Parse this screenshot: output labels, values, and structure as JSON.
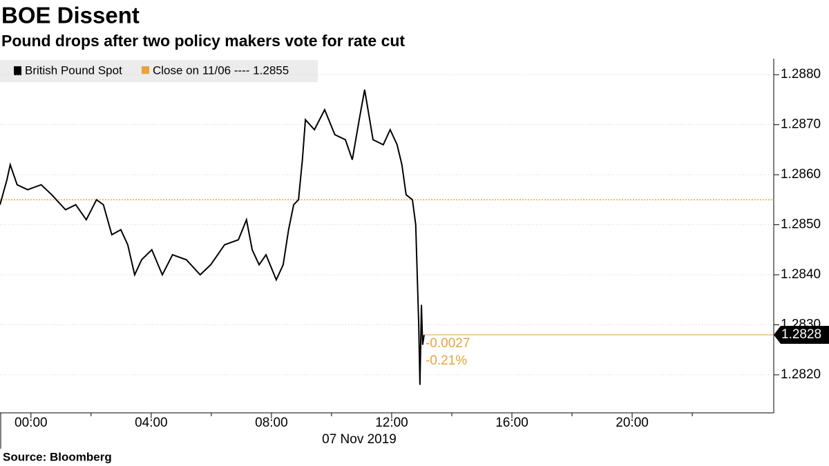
{
  "chart_data": {
    "type": "line",
    "title": "BOE Dissent",
    "subtitle": "Pound drops after two policy makers vote for rate cut",
    "x_label": "07 Nov 2019",
    "source": "Source: Bloomberg",
    "x": [
      -1.03,
      -0.8,
      -0.69,
      -0.46,
      -0.11,
      0.34,
      0.69,
      1.15,
      1.49,
      1.84,
      2.18,
      2.41,
      2.69,
      2.99,
      3.22,
      3.45,
      3.68,
      4.02,
      4.37,
      4.71,
      5.17,
      5.63,
      5.98,
      6.44,
      6.9,
      7.17,
      7.36,
      7.59,
      7.82,
      8.16,
      8.39,
      8.57,
      8.74,
      8.9,
      9.03,
      9.13,
      9.43,
      9.77,
      10.11,
      10.46,
      10.69,
      10.92,
      11.1,
      11.38,
      11.72,
      11.95,
      12.18,
      12.34,
      12.48,
      12.69,
      12.8,
      12.9,
      12.94,
      12.99,
      13.03,
      13.08
    ],
    "series": [
      {
        "name": "British Pound Spot",
        "color": "#000000",
        "values": [
          1.2854,
          1.2859,
          1.2862,
          1.2858,
          1.2857,
          1.2858,
          1.2856,
          1.2853,
          1.2854,
          1.2851,
          1.2855,
          1.2854,
          1.2848,
          1.2849,
          1.2846,
          1.284,
          1.2843,
          1.2845,
          1.284,
          1.2844,
          1.2843,
          1.284,
          1.2842,
          1.2846,
          1.2847,
          1.2851,
          1.2845,
          1.2842,
          1.2844,
          1.2839,
          1.2842,
          1.2849,
          1.2854,
          1.2855,
          1.2863,
          1.2871,
          1.2869,
          1.2873,
          1.2868,
          1.2867,
          1.2863,
          1.2871,
          1.2877,
          1.2867,
          1.2866,
          1.2869,
          1.2866,
          1.2862,
          1.2856,
          1.2855,
          1.285,
          1.283,
          1.2818,
          1.2834,
          1.2826,
          1.2828
        ]
      }
    ],
    "reference_line": {
      "name": "Close on 11/06 ---- 1.2855",
      "value": 1.2855,
      "color": "#e8a33d"
    },
    "annotations": [
      "-0.0027",
      "-0.21%"
    ],
    "xlim": [
      -1.03,
      24.71
    ],
    "ylim": [
      1.28124,
      1.28832
    ],
    "xticks": [
      {
        "value": 0,
        "label": "00:00"
      },
      {
        "value": 4,
        "label": "04:00"
      },
      {
        "value": 8,
        "label": "08:00"
      },
      {
        "value": 12,
        "label": "12:00"
      },
      {
        "value": 16,
        "label": "16:00"
      },
      {
        "value": 20,
        "label": "20:00"
      }
    ],
    "minor_xticks": [
      2,
      6,
      10,
      14,
      18,
      22
    ],
    "yticks": [
      {
        "value": 1.282,
        "label": "1.2820"
      },
      {
        "value": 1.283,
        "label": "1.2830"
      },
      {
        "value": 1.284,
        "label": "1.2840"
      },
      {
        "value": 1.285,
        "label": "1.2850"
      },
      {
        "value": 1.286,
        "label": "1.2860"
      },
      {
        "value": 1.287,
        "label": "1.2870"
      },
      {
        "value": 1.288,
        "label": "1.2880"
      }
    ],
    "grid": true
  }
}
